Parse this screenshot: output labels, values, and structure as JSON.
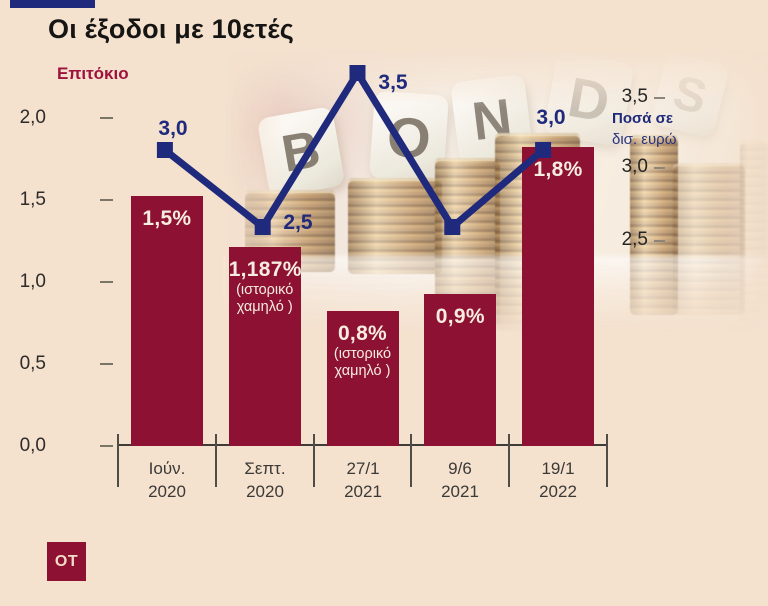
{
  "title": "Οι έξοδοι με 10ετές",
  "left_axis": {
    "label": "Επιτόκιο",
    "ticks": [
      "2,0",
      "1,5",
      "1,0",
      "0,5",
      "0,0"
    ]
  },
  "right_axis": {
    "ticks": [
      "3,5",
      "3,0",
      "2,5"
    ],
    "unit_line1": "Ποσά σε",
    "unit_line2": "δισ. ευρώ"
  },
  "bars": [
    {
      "value": "1,5%",
      "note1": "",
      "note2": "",
      "cat1": "Ιούν.",
      "cat2": "2020"
    },
    {
      "value": "1,187%",
      "note1": "(ιστορικό",
      "note2": "χαμηλό )",
      "cat1": "Σεπτ.",
      "cat2": "2020"
    },
    {
      "value": "0,8%",
      "note1": "(ιστορικό",
      "note2": "χαμηλό )",
      "cat1": "27/1",
      "cat2": "2021"
    },
    {
      "value": "0,9%",
      "note1": "",
      "note2": "",
      "cat1": "9/6",
      "cat2": "2021"
    },
    {
      "value": "1,8%",
      "note1": "",
      "note2": "",
      "cat1": "19/1",
      "cat2": "2022"
    }
  ],
  "photo": {
    "dice": [
      "B",
      "O",
      "N",
      "D",
      "S"
    ]
  },
  "logo": "OT",
  "colors": {
    "maroon": "#8c1132",
    "navy": "#202a7c",
    "cream": "#f4e1ce"
  },
  "chart_data": {
    "type": "bar",
    "title": "Οι έξοδοι με 10ετές",
    "categories": [
      "Ιούν. 2020",
      "Σεπτ. 2020",
      "27/1 2021",
      "9/6 2021",
      "19/1 2022"
    ],
    "series": [
      {
        "name": "Επιτόκιο",
        "type": "bar",
        "axis": "left",
        "unit": "%",
        "values": [
          1.5,
          1.187,
          0.8,
          0.9,
          1.8
        ],
        "labels": [
          "1,5%",
          "1,187% (ιστορικό χαμηλό)",
          "0,8% (ιστορικό χαμηλό)",
          "0,9%",
          "1,8%"
        ]
      },
      {
        "name": "Ποσά σε δισ. ευρώ",
        "type": "line",
        "axis": "right",
        "values": [
          3.0,
          2.5,
          3.5,
          2.5,
          3.0
        ],
        "labels": [
          "3,0",
          "2,5",
          "3,5",
          "",
          "3,0"
        ],
        "estimated": [
          false,
          false,
          false,
          true,
          false
        ]
      }
    ],
    "left_axis": {
      "label": "Επιτόκιο",
      "range": [
        0,
        2.0
      ],
      "ticks": [
        0.0,
        0.5,
        1.0,
        1.5,
        2.0
      ]
    },
    "right_axis": {
      "label": "Ποσά σε δισ. ευρώ",
      "range_shown": [
        2.5,
        3.5
      ],
      "ticks": [
        2.5,
        3.0,
        3.5
      ]
    },
    "grid": false,
    "legend": false,
    "background_word": "BONDS"
  }
}
